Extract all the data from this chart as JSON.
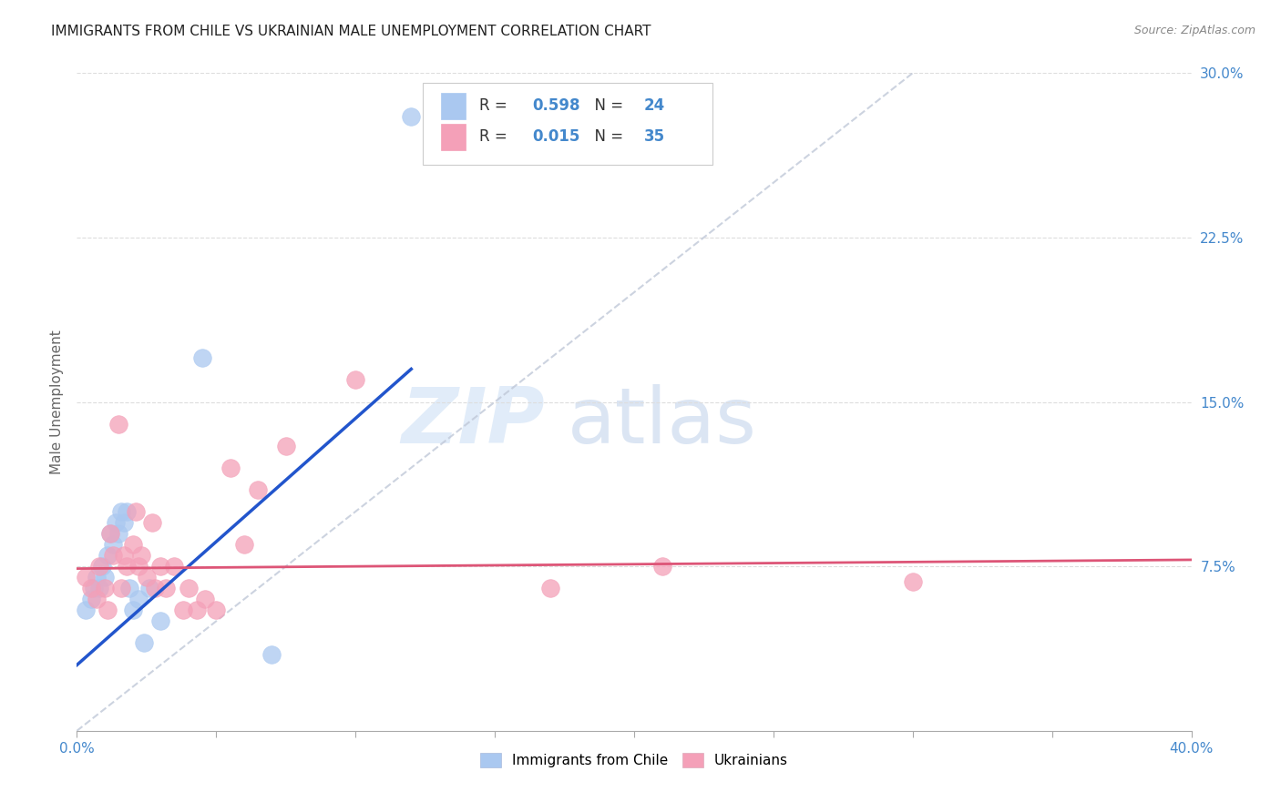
{
  "title": "IMMIGRANTS FROM CHILE VS UKRAINIAN MALE UNEMPLOYMENT CORRELATION CHART",
  "source": "Source: ZipAtlas.com",
  "ylabel": "Male Unemployment",
  "xlim": [
    0.0,
    0.4
  ],
  "ylim": [
    0.0,
    0.3
  ],
  "xticks": [
    0.0,
    0.05,
    0.1,
    0.15,
    0.2,
    0.25,
    0.3,
    0.35,
    0.4
  ],
  "xtick_show_labels": [
    true,
    false,
    false,
    false,
    false,
    false,
    false,
    false,
    true
  ],
  "yticks_right": [
    0.075,
    0.15,
    0.225,
    0.3
  ],
  "ytick_labels_right": [
    "7.5%",
    "15.0%",
    "22.5%",
    "30.0%"
  ],
  "blue_R": "0.598",
  "blue_N": "24",
  "pink_R": "0.015",
  "pink_N": "35",
  "blue_color": "#aac8f0",
  "pink_color": "#f4a0b8",
  "blue_line_color": "#2255cc",
  "pink_line_color": "#dd5577",
  "diagonal_color": "#c0c8d8",
  "legend_blue_label": "Immigrants from Chile",
  "legend_pink_label": "Ukrainians",
  "watermark_zip": "ZIP",
  "watermark_atlas": "atlas",
  "blue_scatter_x": [
    0.003,
    0.005,
    0.006,
    0.007,
    0.008,
    0.009,
    0.01,
    0.011,
    0.012,
    0.013,
    0.014,
    0.015,
    0.016,
    0.017,
    0.018,
    0.019,
    0.02,
    0.022,
    0.024,
    0.026,
    0.03,
    0.045,
    0.07,
    0.12
  ],
  "blue_scatter_y": [
    0.055,
    0.06,
    0.065,
    0.07,
    0.065,
    0.075,
    0.07,
    0.08,
    0.09,
    0.085,
    0.095,
    0.09,
    0.1,
    0.095,
    0.1,
    0.065,
    0.055,
    0.06,
    0.04,
    0.065,
    0.05,
    0.17,
    0.035,
    0.28
  ],
  "pink_scatter_x": [
    0.003,
    0.005,
    0.007,
    0.008,
    0.01,
    0.011,
    0.012,
    0.013,
    0.015,
    0.016,
    0.017,
    0.018,
    0.02,
    0.021,
    0.022,
    0.023,
    0.025,
    0.027,
    0.028,
    0.03,
    0.032,
    0.035,
    0.038,
    0.04,
    0.043,
    0.046,
    0.05,
    0.055,
    0.06,
    0.065,
    0.075,
    0.1,
    0.17,
    0.21,
    0.3
  ],
  "pink_scatter_y": [
    0.07,
    0.065,
    0.06,
    0.075,
    0.065,
    0.055,
    0.09,
    0.08,
    0.14,
    0.065,
    0.08,
    0.075,
    0.085,
    0.1,
    0.075,
    0.08,
    0.07,
    0.095,
    0.065,
    0.075,
    0.065,
    0.075,
    0.055,
    0.065,
    0.055,
    0.06,
    0.055,
    0.12,
    0.085,
    0.11,
    0.13,
    0.16,
    0.065,
    0.075,
    0.068
  ],
  "blue_line_x": [
    0.0,
    0.12
  ],
  "blue_line_y": [
    0.03,
    0.165
  ],
  "pink_line_x": [
    0.0,
    0.4
  ],
  "pink_line_y": [
    0.074,
    0.078
  ],
  "diag_line_x": [
    0.0,
    0.3
  ],
  "diag_line_y": [
    0.0,
    0.3
  ],
  "title_color": "#222222",
  "axis_label_color": "#666666",
  "tick_color": "#4488cc",
  "grid_color": "#dddddd",
  "source_color": "#888888"
}
